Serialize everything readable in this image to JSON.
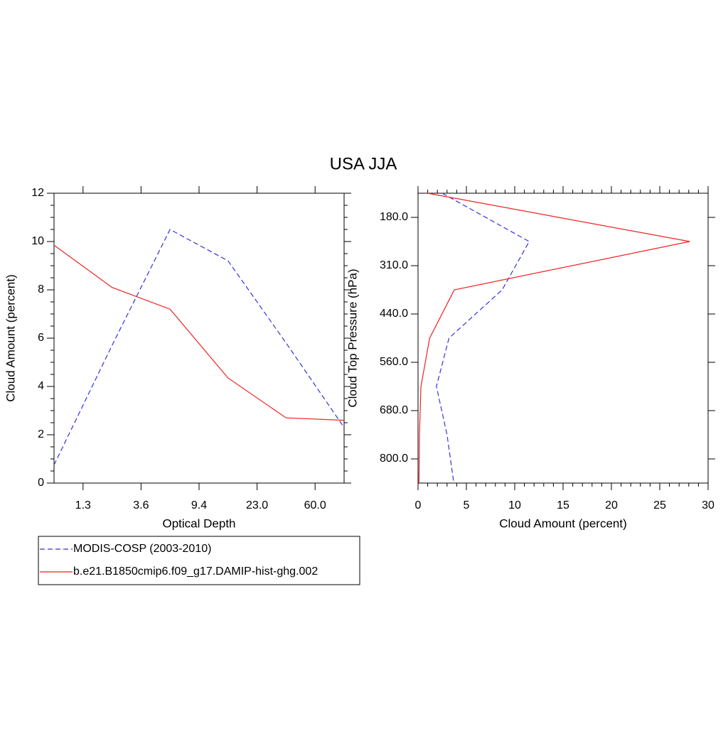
{
  "chart_data": [
    {
      "type": "line",
      "title": "USA JJA",
      "x_label": "Optical Depth",
      "y_label": "Cloud Amount (percent)",
      "x": [
        0,
        1,
        2,
        3,
        4,
        5
      ],
      "xlim": [
        0,
        5
      ],
      "xticks": [
        {
          "value": 0.5,
          "label": "1.3"
        },
        {
          "value": 1.5,
          "label": "3.6"
        },
        {
          "value": 2.5,
          "label": "9.4"
        },
        {
          "value": 3.5,
          "label": "23.0"
        },
        {
          "value": 4.5,
          "label": "60.0"
        }
      ],
      "ylim": [
        0,
        12
      ],
      "yticks": [
        0,
        2,
        4,
        6,
        8,
        10,
        12
      ],
      "minor_step": 0.5,
      "series": [
        {
          "name": "MODIS-COSP (2003-2010)",
          "color": "#3333dd",
          "dashed": true,
          "values": [
            0.75,
            5.7,
            10.5,
            9.2,
            5.8,
            2.3
          ]
        },
        {
          "name": "b.e21.B1850cmip6.f09_g17.DAMIP-hist-ghg.002",
          "color": "#ee2222",
          "dashed": false,
          "values": [
            9.85,
            8.1,
            7.2,
            4.35,
            2.7,
            2.6
          ]
        }
      ]
    },
    {
      "type": "line",
      "orientation": "horizontal",
      "x_label": "Cloud Amount (percent)",
      "y_label": "Cloud Top Pressure (hPa)",
      "y": [
        0,
        1,
        2,
        3,
        4,
        5,
        6
      ],
      "ylim": [
        0,
        6
      ],
      "y_inverted": true,
      "yticks": [
        {
          "value": 0.5,
          "label": "180.0"
        },
        {
          "value": 1.5,
          "label": "310.0"
        },
        {
          "value": 2.5,
          "label": "440.0"
        },
        {
          "value": 3.5,
          "label": "560.0"
        },
        {
          "value": 4.5,
          "label": "680.0"
        },
        {
          "value": 5.5,
          "label": "800.0"
        }
      ],
      "xlim": [
        0,
        30
      ],
      "xticks": [
        0,
        5,
        10,
        15,
        20,
        25,
        30
      ],
      "minor_step": 1,
      "series": [
        {
          "name": "MODIS-COSP (2003-2010)",
          "color": "#3333dd",
          "dashed": true,
          "values": [
            2.5,
            11.5,
            8.7,
            3.2,
            1.9,
            3.0,
            3.7
          ]
        },
        {
          "name": "b.e21.B1850cmip6.f09_g17.DAMIP-hist-ghg.002",
          "color": "#ee2222",
          "dashed": false,
          "values": [
            1.0,
            28.1,
            3.75,
            1.2,
            0.3,
            0.15,
            0.1
          ]
        }
      ]
    }
  ]
}
